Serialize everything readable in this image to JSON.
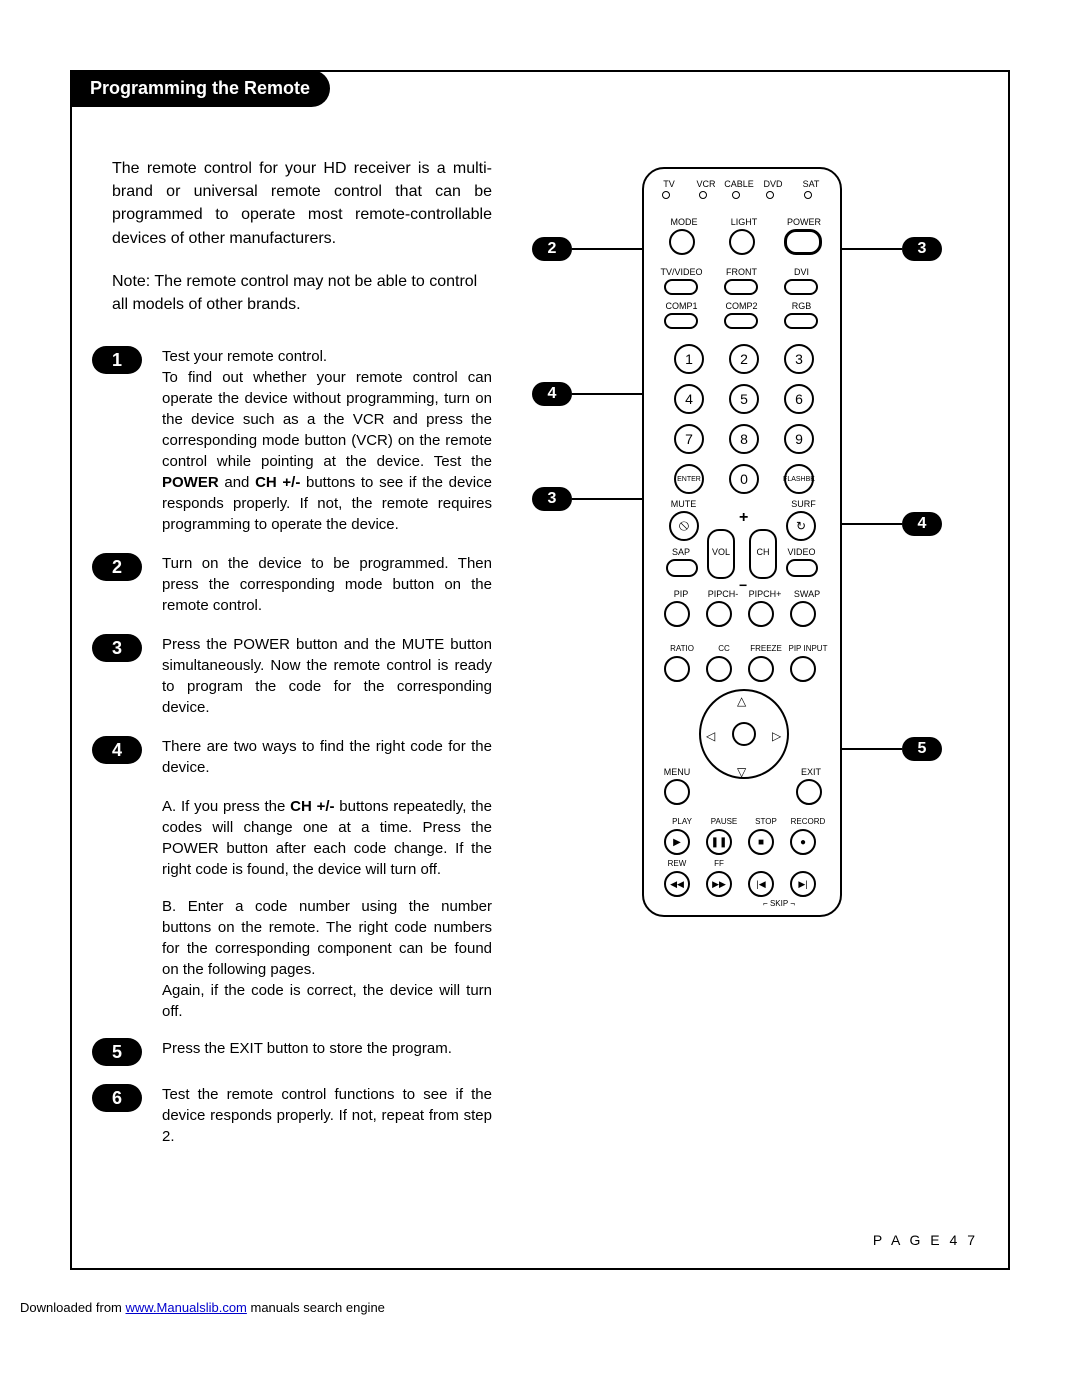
{
  "header": {
    "title": "Programming the Remote"
  },
  "intro": "The remote control for your HD receiver is a multi-brand or universal remote control that can be programmed to operate most remote-controllable devices of other manufacturers.",
  "note": "Note: The remote control may not be able to control all models of other brands.",
  "steps": [
    {
      "n": "1",
      "lead": "Test your remote control.",
      "body": "To find out whether your remote control can operate the device without programming, turn on the device such as a the VCR and press the corresponding mode button (VCR) on the remote control while pointing at the device. Test the <b>POWER</b> and <b>CH +/-</b> buttons to see if the device responds properly. If not, the remote requires programming to operate the device."
    },
    {
      "n": "2",
      "body": "Turn on the device to be programmed. Then press the corresponding mode button on the remote control."
    },
    {
      "n": "3",
      "body": "Press the POWER button and the MUTE button simultaneously. Now the remote control is ready to program the code for the corresponding device."
    },
    {
      "n": "4",
      "body": "There are two ways to find the right code for the device.",
      "subs": [
        "A. If  you press the <b>CH +/-</b> buttons repeatedly, the codes will change one at a time. Press the POWER button after each code change. If the right code is found, the device will turn off.",
        "B. Enter a code number using the number buttons on the remote. The right code numbers for the corresponding component can be found on the following pages.<br>Again, if the code is correct, the device will turn off."
      ]
    },
    {
      "n": "5",
      "body": "Press the EXIT button to store the program."
    },
    {
      "n": "6",
      "body": "Test the remote control functions to see if the device responds properly. If not, repeat from step 2."
    }
  ],
  "remote": {
    "leds": [
      "TV",
      "VCR",
      "CABLE",
      "DVD",
      "SAT"
    ],
    "row_mode": [
      "MODE",
      "LIGHT",
      "POWER"
    ],
    "row_input1": [
      "TV/VIDEO",
      "FRONT",
      "DVI"
    ],
    "row_input2": [
      "COMP1",
      "COMP2",
      "RGB"
    ],
    "numpad": [
      "1",
      "2",
      "3",
      "4",
      "5",
      "6",
      "7",
      "8",
      "9",
      "ENTER",
      "0",
      "FLASHBK"
    ],
    "mute": "MUTE",
    "surf": "SURF",
    "sap": "SAP",
    "video": "VIDEO",
    "vol": "VOL",
    "ch": "CH",
    "pip_row": [
      "PIP",
      "PIPCH-",
      "PIPCH+",
      "SWAP"
    ],
    "misc_row": [
      "RATIO",
      "CC",
      "FREEZE",
      "PIP INPUT"
    ],
    "menu": "MENU",
    "exit": "EXIT",
    "transport1": [
      "PLAY",
      "PAUSE",
      "STOP",
      "RECORD"
    ],
    "transport2": [
      "REW",
      "FF"
    ],
    "skip": "SKIP"
  },
  "callouts": {
    "c2": "2",
    "c3top": "3",
    "c4left": "4",
    "c3left": "3",
    "c4right": "4",
    "c5": "5"
  },
  "page_num": "P A G E   4 7",
  "footer": {
    "pre": "Downloaded from ",
    "link": "www.Manualslib.com",
    "post": " manuals search engine"
  }
}
